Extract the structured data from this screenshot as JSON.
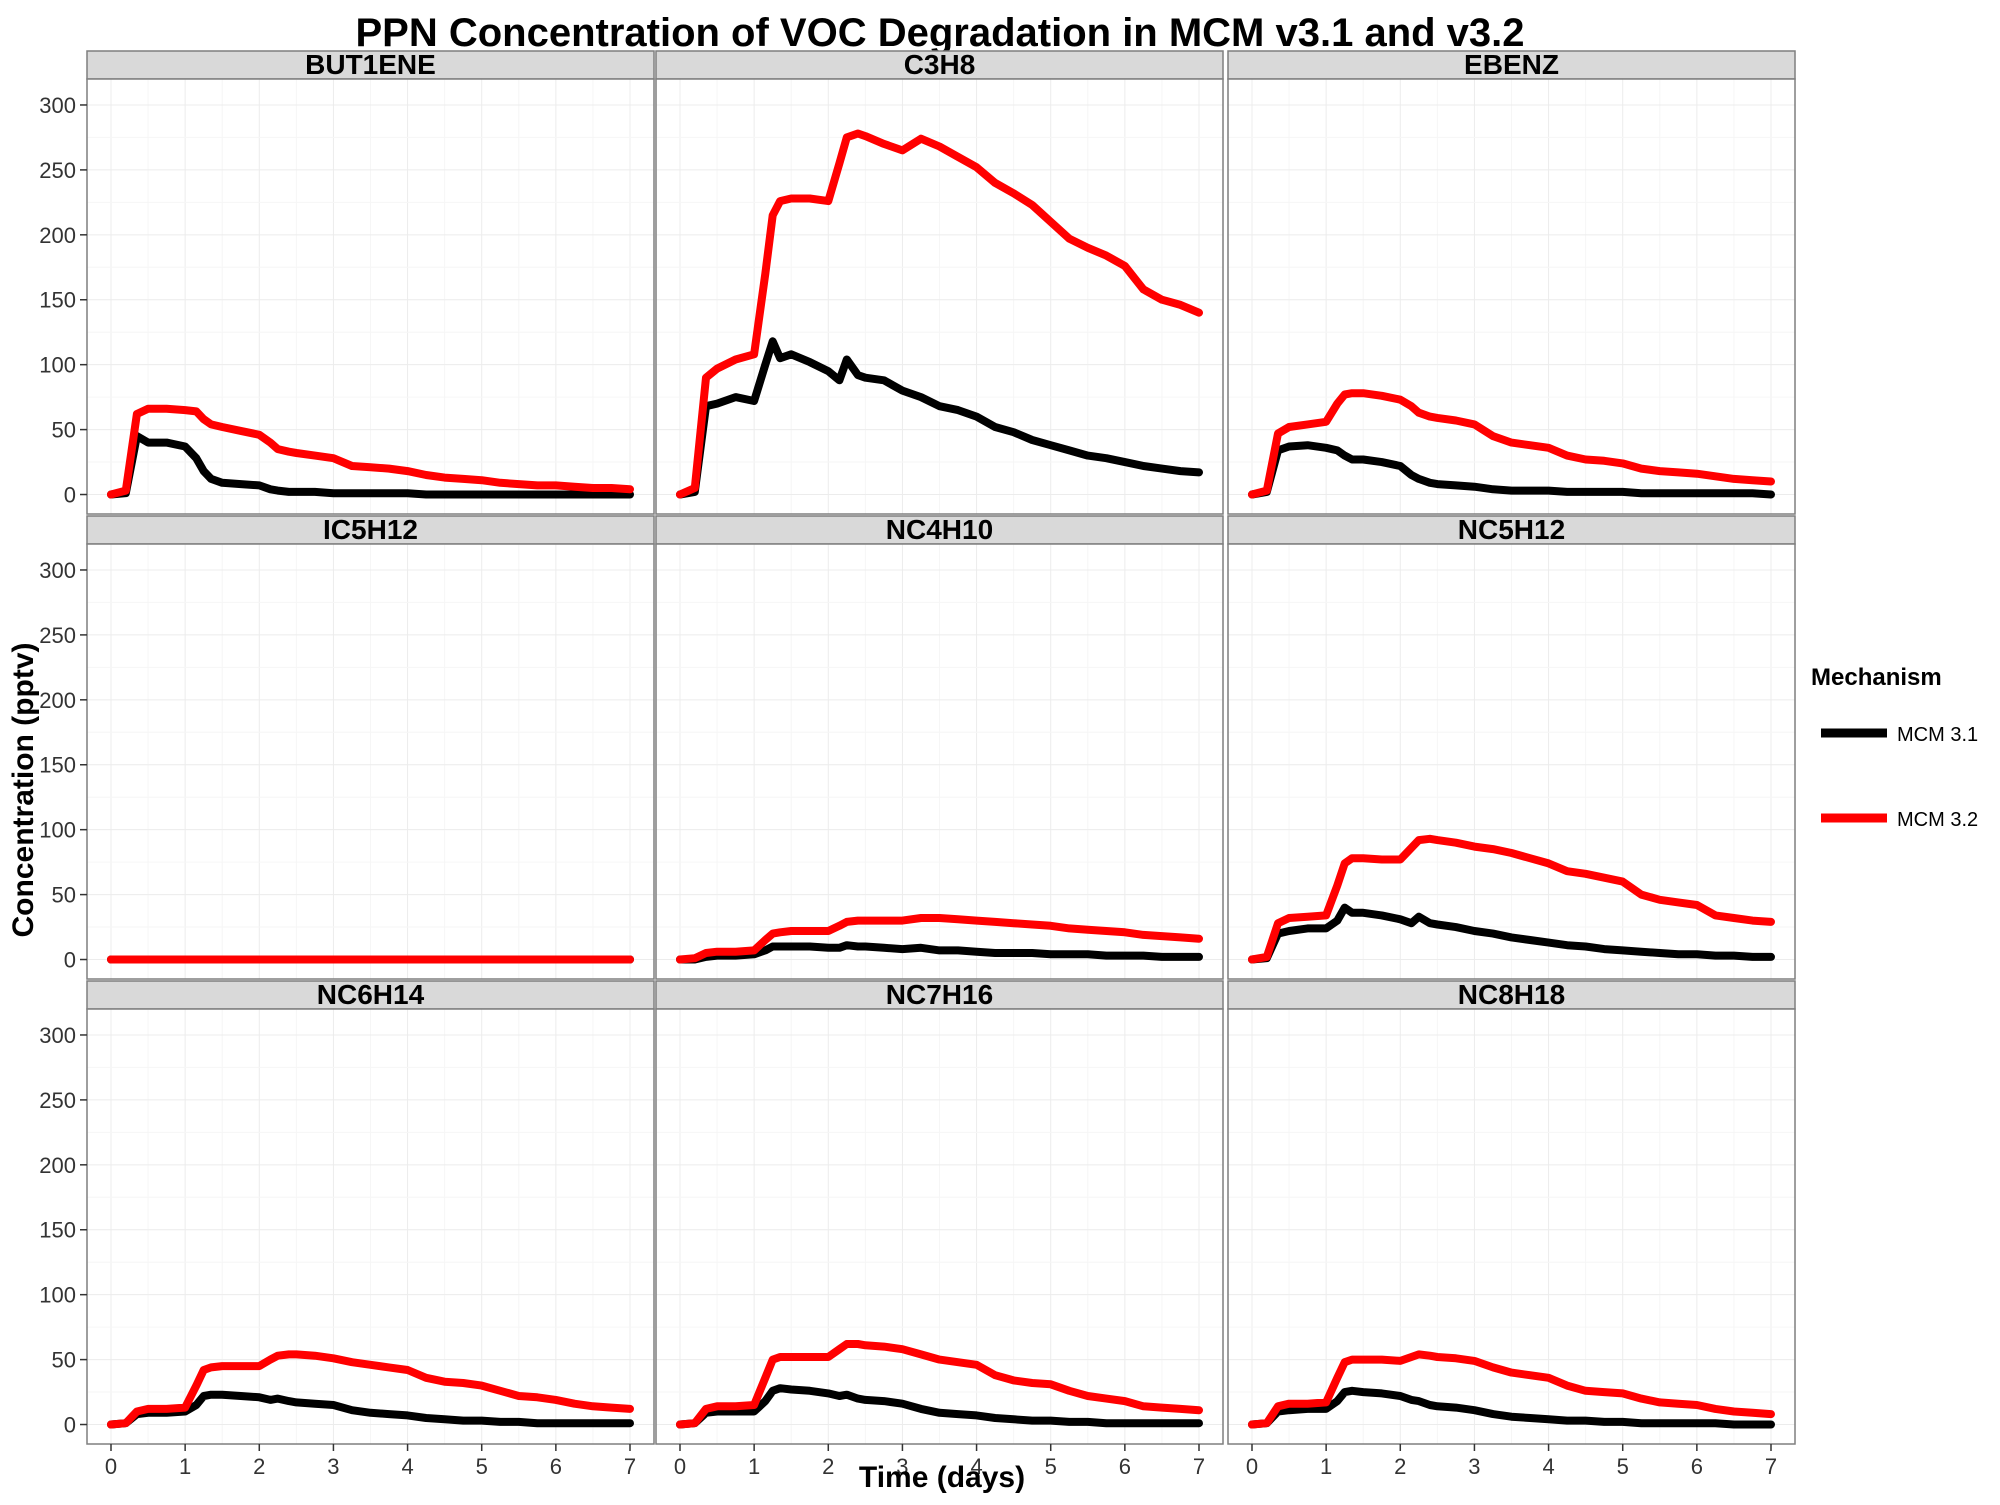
{
  "chart_data": {
    "type": "line",
    "title": "PPN Concentration of VOC Degradation in MCM v3.1 and v3.2",
    "xlabel": "Time (days)",
    "ylabel": "Concentration (pptv)",
    "xlim": [
      0,
      7
    ],
    "ylim": [
      0,
      300
    ],
    "x_ticks": [
      0,
      1,
      2,
      3,
      4,
      5,
      6,
      7
    ],
    "y_ticks": [
      0,
      50,
      100,
      150,
      200,
      250,
      300
    ],
    "grid": true,
    "legend": {
      "title": "Mechanism",
      "placement": "right",
      "entries": [
        {
          "label": "MCM 3.1",
          "color": "#000000"
        },
        {
          "label": "MCM 3.2",
          "color": "#ff0000"
        }
      ]
    },
    "x": [
      0,
      0.2,
      0.35,
      0.5,
      0.75,
      1.0,
      1.15,
      1.25,
      1.35,
      1.5,
      1.75,
      2.0,
      2.15,
      2.25,
      2.4,
      2.5,
      2.75,
      3.0,
      3.25,
      3.5,
      3.75,
      4.0,
      4.25,
      4.5,
      4.75,
      5.0,
      5.25,
      5.5,
      5.75,
      6.0,
      6.25,
      6.5,
      6.75,
      7.0
    ],
    "panels": [
      {
        "name": "BUT1ENE",
        "series": [
          {
            "name": "MCM 3.1",
            "values": [
              0,
              1,
              45,
              40,
              40,
              37,
              28,
              18,
              12,
              9,
              8,
              7,
              4,
              3,
              2,
              2,
              2,
              1,
              1,
              1,
              1,
              1,
              0,
              0,
              0,
              0,
              0,
              0,
              0,
              0,
              0,
              0,
              0,
              0
            ]
          },
          {
            "name": "MCM 3.2",
            "values": [
              0,
              3,
              62,
              66,
              66,
              65,
              64,
              58,
              54,
              52,
              49,
              46,
              40,
              35,
              33,
              32,
              30,
              28,
              22,
              21,
              20,
              18,
              15,
              13,
              12,
              11,
              9,
              8,
              7,
              7,
              6,
              5,
              5,
              4
            ]
          }
        ]
      },
      {
        "name": "C3H8",
        "series": [
          {
            "name": "MCM 3.1",
            "values": [
              0,
              2,
              68,
              70,
              75,
              72,
              100,
              118,
              105,
              108,
              102,
              95,
              88,
              104,
              92,
              90,
              88,
              80,
              75,
              68,
              65,
              60,
              52,
              48,
              42,
              38,
              34,
              30,
              28,
              25,
              22,
              20,
              18,
              17
            ]
          },
          {
            "name": "MCM 3.2",
            "values": [
              0,
              5,
              90,
              97,
              104,
              108,
              170,
              215,
              226,
              228,
              228,
              226,
              255,
              275,
              278,
              276,
              270,
              265,
              274,
              268,
              260,
              252,
              240,
              232,
              223,
              210,
              197,
              190,
              184,
              176,
              158,
              150,
              146,
              140
            ]
          }
        ]
      },
      {
        "name": "EBENZ",
        "series": [
          {
            "name": "MCM 3.1",
            "values": [
              0,
              2,
              34,
              37,
              38,
              36,
              34,
              30,
              27,
              27,
              25,
              22,
              15,
              12,
              9,
              8,
              7,
              6,
              4,
              3,
              3,
              3,
              2,
              2,
              2,
              2,
              1,
              1,
              1,
              1,
              1,
              1,
              1,
              0
            ]
          },
          {
            "name": "MCM 3.2",
            "values": [
              0,
              3,
              47,
              52,
              54,
              56,
              70,
              77,
              78,
              78,
              76,
              73,
              68,
              63,
              60,
              59,
              57,
              54,
              45,
              40,
              38,
              36,
              30,
              27,
              26,
              24,
              20,
              18,
              17,
              16,
              14,
              12,
              11,
              10
            ]
          }
        ]
      },
      {
        "name": "IC5H12",
        "series": [
          {
            "name": "MCM 3.1",
            "values": [
              0,
              0,
              0,
              0,
              0,
              0,
              0,
              0,
              0,
              0,
              0,
              0,
              0,
              0,
              0,
              0,
              0,
              0,
              0,
              0,
              0,
              0,
              0,
              0,
              0,
              0,
              0,
              0,
              0,
              0,
              0,
              0,
              0,
              0
            ]
          },
          {
            "name": "MCM 3.2",
            "values": [
              0,
              0,
              0,
              0,
              0,
              0,
              0,
              0,
              0,
              0,
              0,
              0,
              0,
              0,
              0,
              0,
              0,
              0,
              0,
              0,
              0,
              0,
              0,
              0,
              0,
              0,
              0,
              0,
              0,
              0,
              0,
              0,
              0,
              0
            ]
          }
        ]
      },
      {
        "name": "NC4H10",
        "series": [
          {
            "name": "MCM 3.1",
            "values": [
              0,
              0,
              2,
              3,
              3,
              4,
              7,
              10,
              10,
              10,
              10,
              9,
              9,
              11,
              10,
              10,
              9,
              8,
              9,
              7,
              7,
              6,
              5,
              5,
              5,
              4,
              4,
              4,
              3,
              3,
              3,
              2,
              2,
              2
            ]
          },
          {
            "name": "MCM 3.2",
            "values": [
              0,
              1,
              5,
              6,
              6,
              7,
              15,
              20,
              21,
              22,
              22,
              22,
              26,
              29,
              30,
              30,
              30,
              30,
              32,
              32,
              31,
              30,
              29,
              28,
              27,
              26,
              24,
              23,
              22,
              21,
              19,
              18,
              17,
              16
            ]
          }
        ]
      },
      {
        "name": "NC5H12",
        "series": [
          {
            "name": "MCM 3.1",
            "values": [
              0,
              1,
              20,
              22,
              24,
              24,
              30,
              40,
              36,
              36,
              34,
              31,
              28,
              33,
              28,
              27,
              25,
              22,
              20,
              17,
              15,
              13,
              11,
              10,
              8,
              7,
              6,
              5,
              4,
              4,
              3,
              3,
              2,
              2
            ]
          },
          {
            "name": "MCM 3.2",
            "values": [
              0,
              2,
              28,
              32,
              33,
              34,
              57,
              74,
              78,
              78,
              77,
              77,
              86,
              92,
              93,
              92,
              90,
              87,
              85,
              82,
              78,
              74,
              68,
              66,
              63,
              60,
              50,
              46,
              44,
              42,
              34,
              32,
              30,
              29
            ]
          }
        ]
      },
      {
        "name": "NC6H14",
        "series": [
          {
            "name": "MCM 3.1",
            "values": [
              0,
              1,
              8,
              9,
              9,
              10,
              15,
              22,
              23,
              23,
              22,
              21,
              19,
              20,
              18,
              17,
              16,
              15,
              11,
              9,
              8,
              7,
              5,
              4,
              3,
              3,
              2,
              2,
              1,
              1,
              1,
              1,
              1,
              1
            ]
          },
          {
            "name": "MCM 3.2",
            "values": [
              0,
              1,
              10,
              12,
              12,
              13,
              30,
              42,
              44,
              45,
              45,
              45,
              50,
              53,
              54,
              54,
              53,
              51,
              48,
              46,
              44,
              42,
              36,
              33,
              32,
              30,
              26,
              22,
              21,
              19,
              16,
              14,
              13,
              12
            ]
          }
        ]
      },
      {
        "name": "NC7H16",
        "series": [
          {
            "name": "MCM 3.1",
            "values": [
              0,
              1,
              9,
              10,
              10,
              10,
              18,
              26,
              28,
              27,
              26,
              24,
              22,
              23,
              20,
              19,
              18,
              16,
              12,
              9,
              8,
              7,
              5,
              4,
              3,
              3,
              2,
              2,
              1,
              1,
              1,
              1,
              1,
              1
            ]
          },
          {
            "name": "MCM 3.2",
            "values": [
              0,
              1,
              12,
              14,
              14,
              15,
              36,
              50,
              52,
              52,
              52,
              52,
              58,
              62,
              62,
              61,
              60,
              58,
              54,
              50,
              48,
              46,
              38,
              34,
              32,
              31,
              26,
              22,
              20,
              18,
              14,
              13,
              12,
              11
            ]
          }
        ]
      },
      {
        "name": "NC8H18",
        "series": [
          {
            "name": "MCM 3.1",
            "values": [
              0,
              1,
              10,
              11,
              12,
              12,
              18,
              25,
              26,
              25,
              24,
              22,
              19,
              18,
              15,
              14,
              13,
              11,
              8,
              6,
              5,
              4,
              3,
              3,
              2,
              2,
              1,
              1,
              1,
              1,
              1,
              0,
              0,
              0
            ]
          },
          {
            "name": "MCM 3.2",
            "values": [
              0,
              1,
              14,
              16,
              16,
              17,
              36,
              48,
              50,
              50,
              50,
              49,
              52,
              54,
              53,
              52,
              51,
              49,
              44,
              40,
              38,
              36,
              30,
              26,
              25,
              24,
              20,
              17,
              16,
              15,
              12,
              10,
              9,
              8
            ]
          }
        ]
      }
    ]
  }
}
